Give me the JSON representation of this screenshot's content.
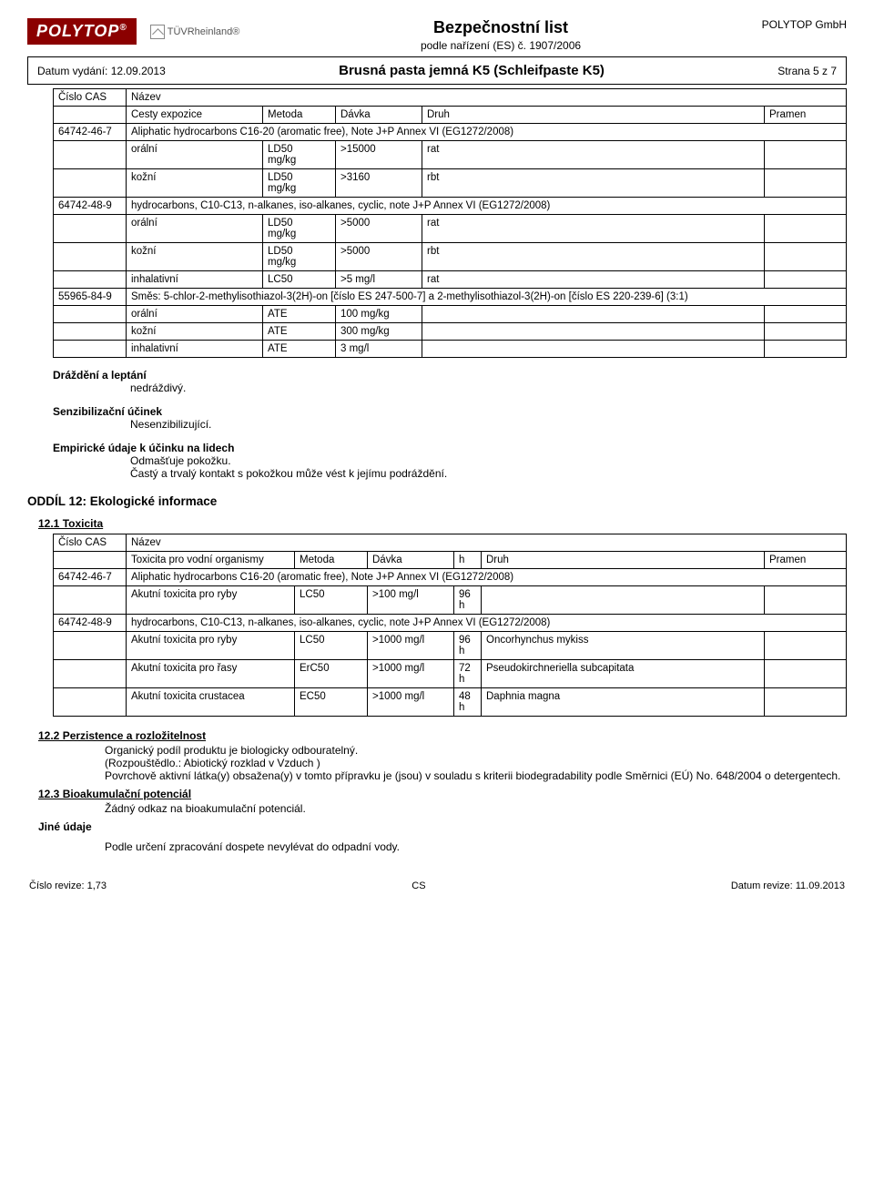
{
  "header": {
    "logo_text": "POLYTOP",
    "tuv_text": "TÜVRheinland®",
    "company": "POLYTOP GmbH",
    "doc_title": "Bezpečnostní list",
    "doc_subtitle": "podle nařízení (ES) č. 1907/2006",
    "issue_date_label": "Datum vydání: 12.09.2013",
    "product_name": "Brusná pasta jemná K5 (Schleifpaste K5)",
    "page_info": "Strana 5 z 7"
  },
  "tox_table": {
    "headers": {
      "cas": "Číslo CAS",
      "name": "Název",
      "route": "Cesty expozice",
      "method": "Metoda",
      "dose": "Dávka",
      "species": "Druh",
      "source": "Pramen"
    },
    "groups": [
      {
        "cas": "64742-46-7",
        "name": "Aliphatic hydrocarbons C16-20 (aromatic free), Note J+P Annex VI (EG1272/2008)",
        "rows": [
          {
            "route": "orální",
            "method": "LD50 mg/kg",
            "dose": ">15000",
            "species": "rat",
            "source": ""
          },
          {
            "route": "kožní",
            "method": "LD50 mg/kg",
            "dose": ">3160",
            "species": "rbt",
            "source": ""
          }
        ]
      },
      {
        "cas": "64742-48-9",
        "name": "hydrocarbons, C10-C13, n-alkanes, iso-alkanes, cyclic, note J+P Annex VI (EG1272/2008)",
        "rows": [
          {
            "route": "orální",
            "method": "LD50 mg/kg",
            "dose": ">5000",
            "species": "rat",
            "source": ""
          },
          {
            "route": "kožní",
            "method": "LD50 mg/kg",
            "dose": ">5000",
            "species": "rbt",
            "source": ""
          },
          {
            "route": "inhalativní",
            "method": "LC50",
            "dose": ">5 mg/l",
            "species": "rat",
            "source": ""
          }
        ]
      },
      {
        "cas": "55965-84-9",
        "name": "Směs: 5-chlor-2-methylisothiazol-3(2H)-on [číslo ES 247-500-7] a 2-methylisothiazol-3(2H)-on [číslo ES 220-239-6] (3:1)",
        "rows": [
          {
            "route": "orální",
            "method": "ATE",
            "dose": "100 mg/kg",
            "species": "",
            "source": ""
          },
          {
            "route": "kožní",
            "method": "ATE",
            "dose": "300 mg/kg",
            "species": "",
            "source": ""
          },
          {
            "route": "inhalativní",
            "method": "ATE",
            "dose": "3 mg/l",
            "species": "",
            "source": ""
          }
        ]
      }
    ]
  },
  "text_blocks": {
    "irritation_label": "Dráždění a leptání",
    "irritation_text": "nedráždivý.",
    "sens_label": "Senzibilizační účinek",
    "sens_text": "Nesenzibilizující.",
    "empir_label": "Empirické údaje k účinku na lidech",
    "empir_text1": "Odmašťuje pokožku.",
    "empir_text2": "Častý a trvalý kontakt s pokožkou může vést k jejímu podráždění."
  },
  "oddil12": {
    "title": "ODDÍL 12: Ekologické informace",
    "sub1": "12.1 Toxicita"
  },
  "eco_table": {
    "headers": {
      "cas": "Číslo CAS",
      "name": "Název",
      "org": "Toxicita pro vodní organismy",
      "method": "Metoda",
      "dose": "Dávka",
      "h": "h",
      "species": "Druh",
      "source": "Pramen"
    },
    "groups": [
      {
        "cas": "64742-46-7",
        "name": "Aliphatic hydrocarbons C16-20 (aromatic free), Note J+P Annex VI (EG1272/2008)",
        "rows": [
          {
            "org": "Akutní toxicita pro ryby",
            "method": "LC50",
            "dose": ">100 mg/l",
            "h": "96 h",
            "species": "",
            "source": ""
          }
        ]
      },
      {
        "cas": "64742-48-9",
        "name": "hydrocarbons, C10-C13, n-alkanes, iso-alkanes, cyclic, note J+P Annex VI (EG1272/2008)",
        "rows": [
          {
            "org": "Akutní toxicita pro ryby",
            "method": "LC50",
            "dose": ">1000 mg/l",
            "h": "96 h",
            "species": "Oncorhynchus mykiss",
            "source": ""
          },
          {
            "org": "Akutní toxicita pro řasy",
            "method": "ErC50",
            "dose": ">1000 mg/l",
            "h": "72 h",
            "species": "Pseudokirchneriella subcapitata",
            "source": ""
          },
          {
            "org": "Akutní toxicita crustacea",
            "method": "EC50",
            "dose": ">1000 mg/l",
            "h": "48 h",
            "species": "Daphnia magna",
            "source": ""
          }
        ]
      }
    ]
  },
  "section12_2": {
    "title": "12.2 Perzistence a rozložitelnost",
    "lines": [
      "Organický podíl produktu je biologicky odbouratelný.",
      "(Rozpouštědlo.: Abiotický rozklad v Vzduch )",
      "Povrchově aktivní látka(y) obsažena(y) v tomto přípravku je (jsou) v souladu s kriterii biodegradability podle Směrnici (EÚ) No. 648/2004 o detergentech."
    ]
  },
  "section12_3": {
    "title": "12.3 Bioakumulační potenciál",
    "text": "Žádný odkaz na bioakumulační potenciál."
  },
  "other_data": {
    "label": "Jiné údaje",
    "text": "Podle určení zpracování dospete nevylévat do odpadní vody."
  },
  "footer": {
    "left": "Číslo revize: 1,73",
    "center": "CS",
    "right": "Datum revize: 11.09.2013"
  }
}
